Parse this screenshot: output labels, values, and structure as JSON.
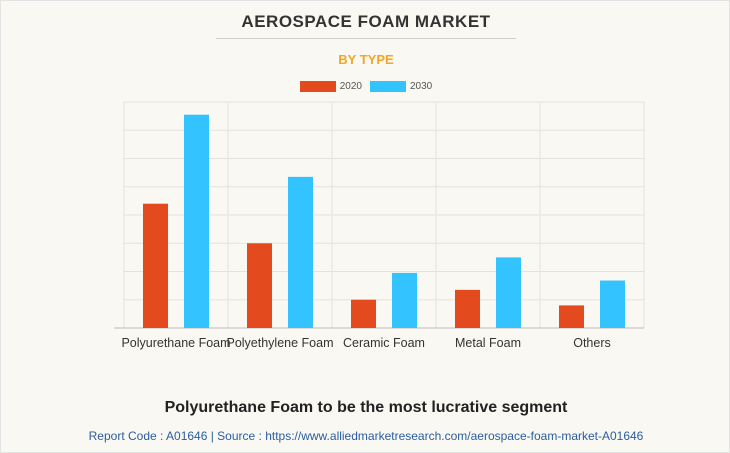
{
  "title": "AEROSPACE FOAM MARKET",
  "subtitle": "BY TYPE",
  "colors": {
    "series_2020": "#e34a1e",
    "series_2030": "#33c4ff",
    "subtitle": "#f5a623",
    "footer": "#2a5d9f"
  },
  "chart_data": {
    "type": "bar",
    "categories": [
      "Polyurethane Foam",
      "Polyethylene Foam",
      "Ceramic Foam",
      "Metal Foam",
      "Others"
    ],
    "series": [
      {
        "name": "2020",
        "values": [
          4.4,
          3.0,
          1.0,
          1.35,
          0.8
        ]
      },
      {
        "name": "2030",
        "values": [
          7.55,
          5.35,
          1.95,
          2.5,
          1.68
        ]
      }
    ],
    "ylim": [
      0,
      8
    ],
    "grid": true,
    "legend_position": "top-center",
    "y_tick_labels_visible": false
  },
  "headline": "Polyurethane Foam to be the most lucrative segment",
  "footer": {
    "text": "Report Code : A01646  |  Source : https://www.alliedmarketresearch.com/aerospace-foam-market-A01646"
  }
}
